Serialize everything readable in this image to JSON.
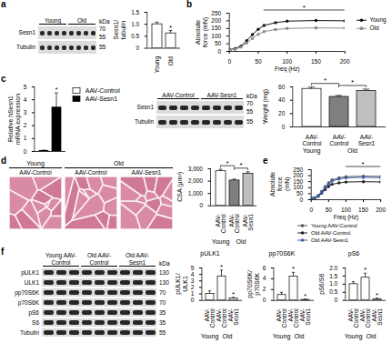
{
  "chart_data": [
    {
      "panel": "a",
      "type": "blot",
      "unit": "kDa",
      "groups": [
        {
          "label": "Young",
          "lanes": 4
        },
        {
          "label": "Old",
          "lanes": 4
        }
      ],
      "rows": [
        {
          "name": "Sesn1",
          "markers": [
            70,
            55
          ]
        },
        {
          "name": "Tubulin",
          "markers": [
            55
          ]
        }
      ]
    },
    {
      "type": "bar",
      "y_label": "Sesn1/tubulin",
      "categories": [
        "Young",
        "Old"
      ],
      "values": [
        1.0,
        0.62
      ],
      "errors": [
        0.07,
        0.1
      ],
      "colors": [
        "#ffffff",
        "#ffffff"
      ],
      "ylim": [
        0,
        1.5
      ],
      "yticks": [
        0,
        0.5,
        {
          "value": 1,
          "label": "1.0"
        },
        1.5
      ],
      "annotations": [
        {
          "text": "*",
          "at": 1
        }
      ]
    },
    {
      "panel": "b",
      "type": "line",
      "x_label": "Freq (Hz)",
      "y_label": "Absolute force (mN)",
      "x": [
        1,
        10,
        20,
        30,
        40,
        50,
        60,
        80,
        100,
        150,
        200
      ],
      "series": [
        {
          "name": "Young",
          "color": "#111111",
          "marker": "circle",
          "values": [
            12,
            18,
            35,
            70,
            110,
            145,
            170,
            188,
            198,
            202,
            200
          ]
        },
        {
          "name": "Old",
          "color": "#8c8c8c",
          "marker": "square",
          "values": [
            10,
            14,
            28,
            55,
            85,
            112,
            130,
            143,
            150,
            154,
            152
          ]
        }
      ],
      "xlim": [
        0,
        200
      ],
      "xticks": [
        0,
        50,
        100,
        150,
        200
      ],
      "ylim": [
        0,
        250
      ],
      "yticks": [
        0,
        50,
        100,
        150,
        200,
        250
      ],
      "legend": "right",
      "annotations": [
        {
          "text": "*",
          "x": [
            60,
            200
          ]
        }
      ]
    },
    {
      "panel": "c",
      "type": "bar",
      "y_label": "Relative hSesn1 mRNA expression",
      "categories": [
        "AAV-Control",
        "AAV-Sesn1"
      ],
      "values": [
        0.05,
        3.4
      ],
      "errors": [
        0.02,
        1.1
      ],
      "colors": [
        "#ffffff",
        "#000000"
      ],
      "ylim": [
        0,
        5
      ],
      "yticks": [
        0,
        1,
        2,
        3,
        4,
        5
      ],
      "tick_labels": "y",
      "legend": "right",
      "annotations": [
        {
          "text": "*",
          "at": 1
        }
      ]
    },
    {
      "type": "blot",
      "unit": "kDa",
      "groups": [
        {
          "label": "AAV-Control",
          "lanes": 4
        },
        {
          "label": "AAV-Sesn1",
          "lanes": 4
        }
      ],
      "rows": [
        {
          "name": "Sesn1",
          "markers": [
            70,
            55
          ]
        },
        {
          "name": "Tubulin",
          "markers": [
            55
          ]
        }
      ]
    },
    {
      "type": "bar",
      "y_label": "Weight (mg)",
      "categories": [
        "AAV-Control",
        "AAV-Control",
        "AAV-Sesn1"
      ],
      "groups": [
        {
          "label": "Young",
          "span": [
            0,
            0
          ]
        },
        {
          "label": "Old",
          "span": [
            1,
            2
          ]
        }
      ],
      "values": [
        57,
        45,
        54
      ],
      "errors": [
        2,
        1.5,
        2
      ],
      "colors": [
        "#ffffff",
        "#7f7f7f",
        "#bfbfbf"
      ],
      "ylim": [
        0,
        60
      ],
      "yticks": [
        0,
        20,
        40,
        60
      ],
      "annotations": [
        {
          "text": "*",
          "between": [
            0,
            1
          ]
        },
        {
          "text": "*",
          "between": [
            1,
            2
          ]
        }
      ]
    },
    {
      "panel": "d",
      "type": "image",
      "groups": [
        {
          "label": "Young",
          "items": [
            "AAV-Control"
          ]
        },
        {
          "label": "Old",
          "items": [
            "AAV-Control",
            "AAV-Sesn1"
          ]
        }
      ]
    },
    {
      "type": "bar",
      "y_label": "CSA (µm²)",
      "categories": [
        "AAV-Control",
        "AAV-Control",
        "AAV-Sesn1"
      ],
      "groups": [
        {
          "label": "Young",
          "span": [
            0,
            0
          ]
        },
        {
          "label": "Old",
          "span": [
            1,
            2
          ]
        }
      ],
      "values": [
        2800,
        2050,
        2600
      ],
      "errors": [
        120,
        80,
        120
      ],
      "colors": [
        "#ffffff",
        "#7f7f7f",
        "#bfbfbf"
      ],
      "ylim": [
        0,
        3000
      ],
      "yticks": [
        0,
        {
          "value": 1000,
          "label": "1,000"
        },
        {
          "value": 2000,
          "label": "2,000"
        },
        {
          "value": 3000,
          "label": "3,000"
        }
      ],
      "annotations": [
        {
          "text": "*",
          "between": [
            0,
            1
          ]
        },
        {
          "text": "*",
          "between": [
            1,
            2
          ]
        }
      ]
    },
    {
      "panel": "e",
      "type": "line",
      "x_label": "Freq (Hz)",
      "y_label": "Absolute force (mN)",
      "x": [
        1,
        10,
        20,
        30,
        40,
        50,
        60,
        80,
        100,
        150,
        200
      ],
      "series": [
        {
          "name": "Young AAV-Control",
          "color": "#555555",
          "marker": "circle",
          "values": [
            12,
            18,
            35,
            68,
            108,
            140,
            165,
            182,
            192,
            196,
            194
          ]
        },
        {
          "name": "Old AAV-Control",
          "color": "#222222",
          "marker": "circle",
          "values": [
            10,
            14,
            28,
            54,
            84,
            110,
            128,
            140,
            147,
            150,
            148
          ]
        },
        {
          "name": "Old AAV-Sesn1",
          "color": "#3f5fa8",
          "marker": "circle",
          "values": [
            11,
            16,
            32,
            62,
            98,
            130,
            155,
            172,
            182,
            186,
            184
          ]
        }
      ],
      "xlim": [
        0,
        200
      ],
      "xticks": [
        0,
        50,
        100,
        150,
        200
      ],
      "ylim": [
        0,
        250
      ],
      "yticks": [
        0,
        50,
        100,
        150,
        200,
        250
      ],
      "legend": "bottom",
      "annotations": [
        {
          "text": "*",
          "x": [
            100,
            200
          ]
        }
      ]
    },
    {
      "panel": "f",
      "type": "blot",
      "unit": "kDa",
      "groups": [
        {
          "label": "Young AAV-Control",
          "lanes": 3
        },
        {
          "label": "Old AAV-Control",
          "lanes": 3
        },
        {
          "label": "Old AAV-Sesn1",
          "lanes": 3
        }
      ],
      "rows": [
        {
          "name": "pULK1",
          "markers": [
            130
          ]
        },
        {
          "name": "ULK1",
          "markers": [
            130
          ]
        },
        {
          "name": "pp70S6K",
          "markers": [
            70
          ]
        },
        {
          "name": "p70S6K",
          "markers": [
            70
          ]
        },
        {
          "name": "pS6",
          "markers": [
            35
          ]
        },
        {
          "name": "S6",
          "markers": [
            35
          ]
        },
        {
          "name": "Tubulin",
          "markers": [
            55
          ]
        }
      ]
    },
    {
      "type": "bar",
      "title": "pULK1",
      "y_label": "pULK1/ULK1",
      "categories": [
        "AAV-Control",
        "AAV-Control",
        "AAV-Sesn1"
      ],
      "groups": [
        {
          "label": "Young",
          "span": [
            0,
            0
          ]
        },
        {
          "label": "Old",
          "span": [
            1,
            2
          ]
        }
      ],
      "values": [
        1.0,
        3.7,
        0.3
      ],
      "errors": [
        0.4,
        0.9,
        0.1
      ],
      "colors": [
        "#ffffff",
        "#ffffff",
        "#ffffff"
      ],
      "ylim": [
        0,
        5
      ],
      "yticks": [
        0,
        1,
        2,
        3,
        4,
        5
      ],
      "annotations": [
        {
          "text": "*",
          "at": 1
        },
        {
          "text": "*",
          "at": 2
        }
      ]
    },
    {
      "type": "bar",
      "title": "pp70S6K",
      "y_label": "pp70S6K/p70S6K",
      "categories": [
        "AAV-Control",
        "AAV-Control",
        "AAV-Sesn1"
      ],
      "groups": [
        {
          "label": "Young",
          "span": [
            0,
            0
          ]
        },
        {
          "label": "Old",
          "span": [
            1,
            2
          ]
        }
      ],
      "values": [
        1.0,
        4.4,
        0.1
      ],
      "errors": [
        0.4,
        0.7,
        0.05
      ],
      "colors": [
        "#ffffff",
        "#ffffff",
        "#ffffff"
      ],
      "ylim": [
        0,
        6
      ],
      "yticks": [
        0,
        2,
        4,
        6
      ],
      "annotations": [
        {
          "text": "*",
          "at": 1
        },
        {
          "text": "*",
          "at": 2
        }
      ]
    },
    {
      "type": "bar",
      "title": "pS6",
      "y_label": "pS6/S6",
      "categories": [
        "AAV-Control",
        "AAV-Control",
        "AAV-Sesn1"
      ],
      "groups": [
        {
          "label": "Young",
          "span": [
            0,
            0
          ]
        },
        {
          "label": "Old",
          "span": [
            1,
            2
          ]
        }
      ],
      "values": [
        1.0,
        1.4,
        0.08
      ],
      "errors": [
        0.12,
        0.25,
        0.03
      ],
      "colors": [
        "#ffffff",
        "#ffffff",
        "#ffffff"
      ],
      "ylim": [
        0,
        2
      ],
      "yticks": [
        0,
        0.5,
        {
          "value": 1,
          "label": "1.0"
        },
        1.5,
        {
          "value": 2,
          "label": "2.0"
        }
      ],
      "annotations": [
        {
          "text": "*",
          "at": 1
        },
        {
          "text": "*",
          "at": 2
        }
      ]
    }
  ]
}
